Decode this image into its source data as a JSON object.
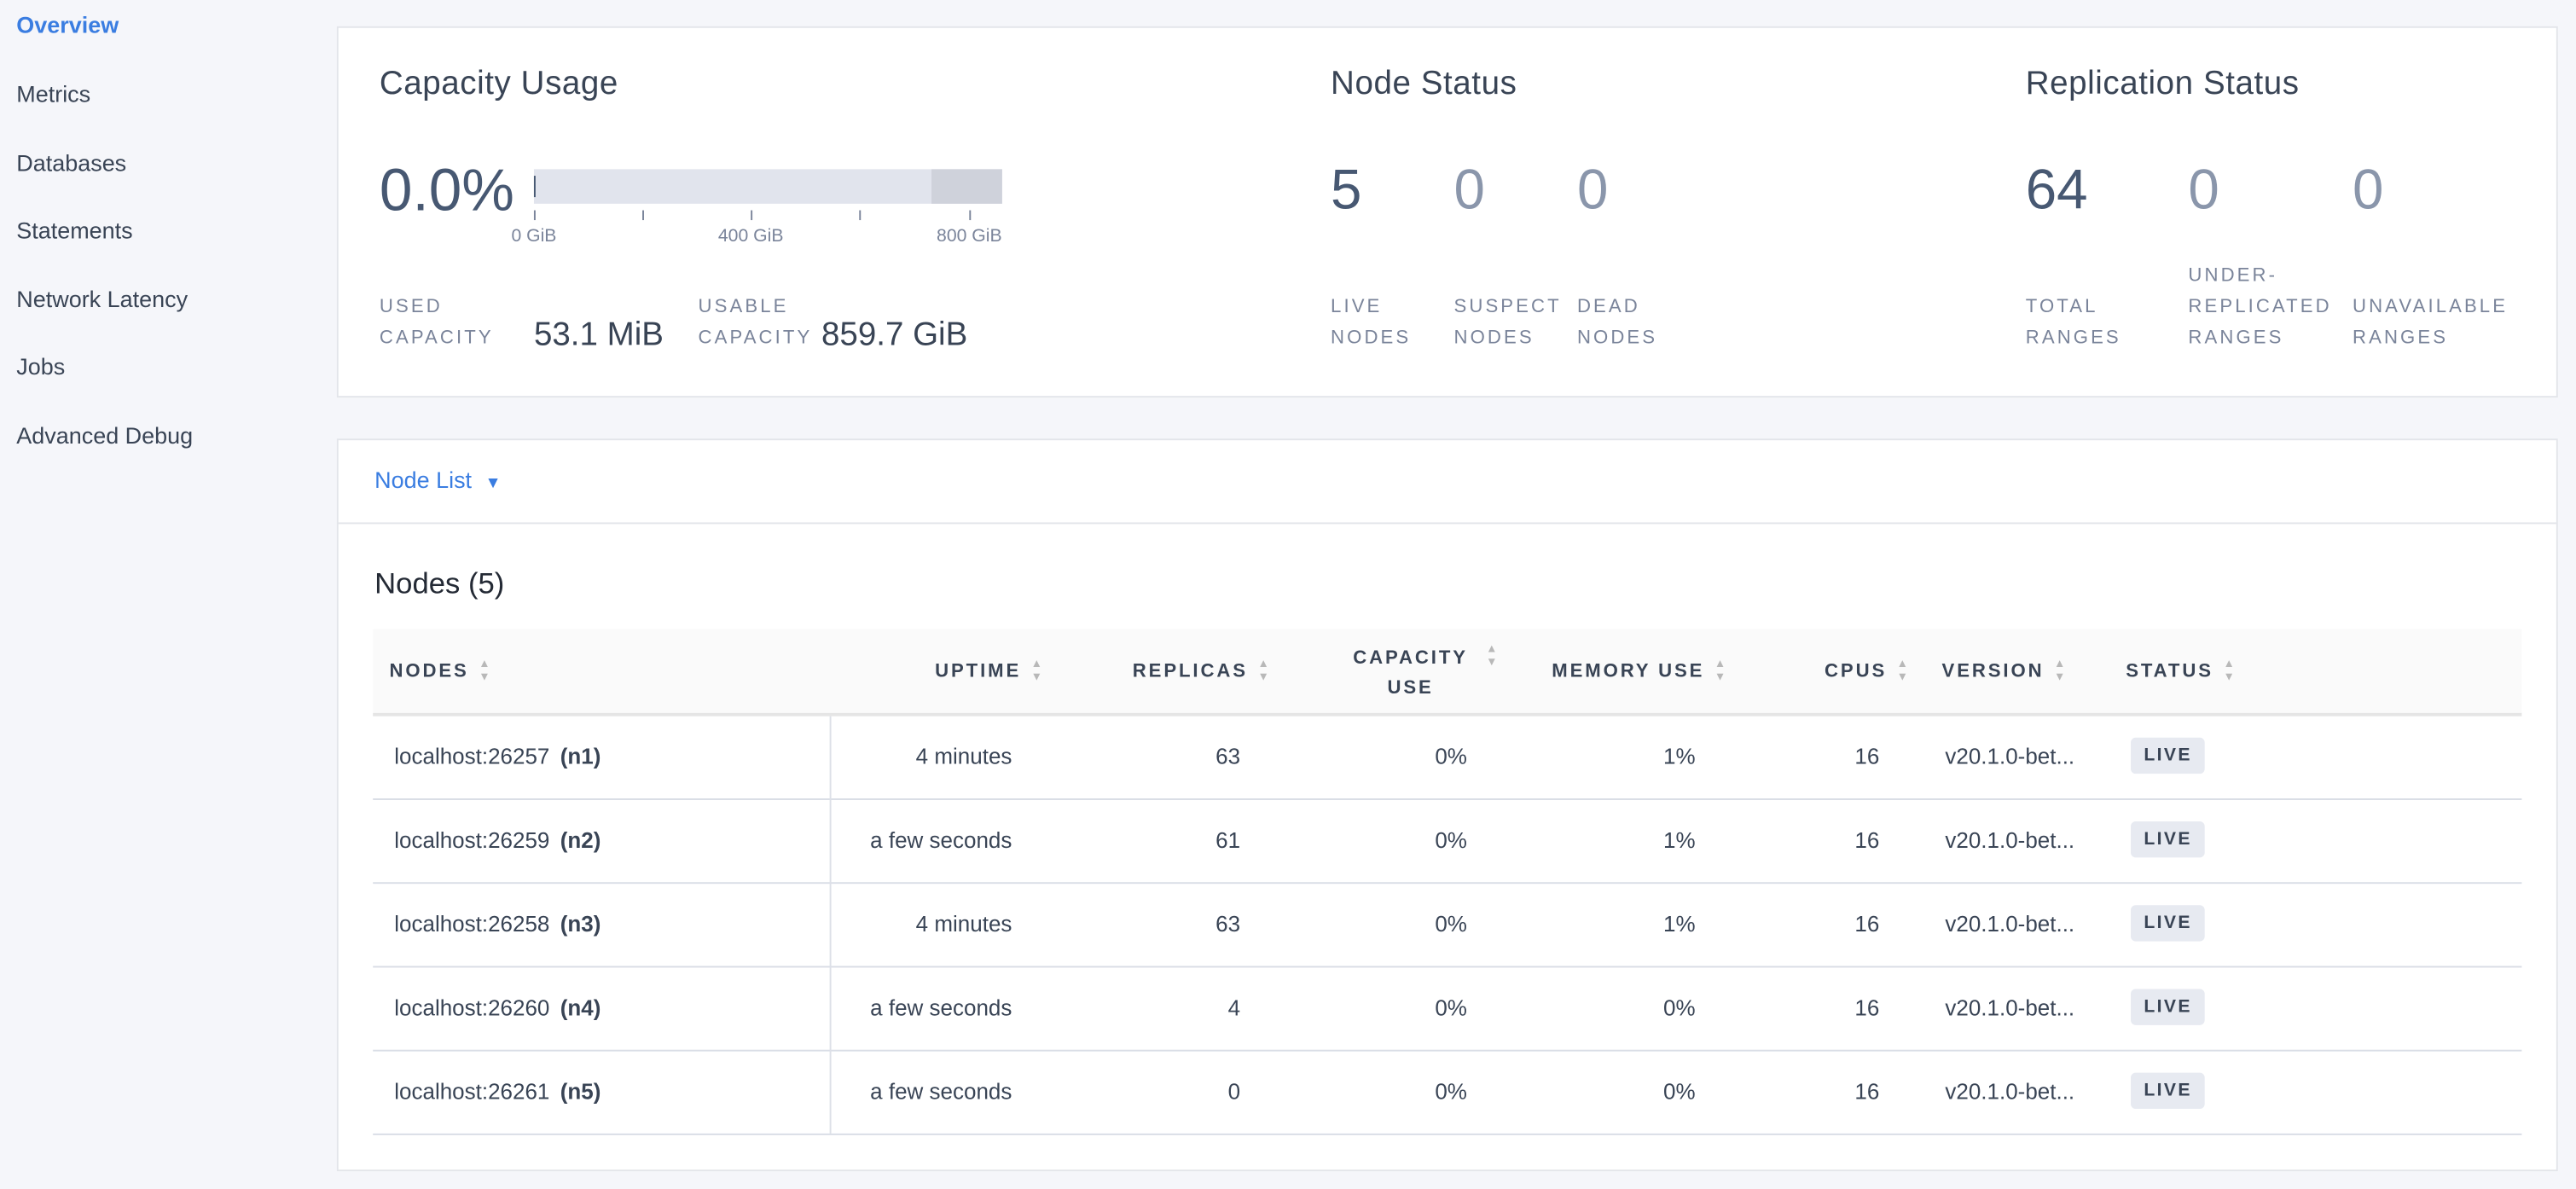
{
  "sidebar": {
    "items": [
      {
        "label": "Overview",
        "active": true
      },
      {
        "label": "Metrics"
      },
      {
        "label": "Databases"
      },
      {
        "label": "Statements"
      },
      {
        "label": "Network Latency"
      },
      {
        "label": "Jobs"
      },
      {
        "label": "Advanced Debug"
      }
    ]
  },
  "capacity": {
    "title": "Capacity Usage",
    "percent": "0.0%",
    "used_fraction": 0.0,
    "bar_max_fraction_label": "usable",
    "ticks": [
      "0 GiB",
      "400 GiB",
      "800 GiB"
    ],
    "used_label_1": "USED",
    "used_label_2": "CAPACITY",
    "used_value": "53.1 MiB",
    "usable_label_1": "USABLE",
    "usable_label_2": "CAPACITY",
    "usable_value": "859.7 GiB"
  },
  "node_status": {
    "title": "Node Status",
    "stats": [
      {
        "value": "5",
        "l1": "LIVE",
        "l2": "NODES"
      },
      {
        "value": "0",
        "l1": "SUSPECT",
        "l2": "NODES"
      },
      {
        "value": "0",
        "l1": "DEAD",
        "l2": "NODES"
      }
    ]
  },
  "replication": {
    "title": "Replication Status",
    "stats": [
      {
        "value": "64",
        "l1": "TOTAL",
        "l2": "RANGES"
      },
      {
        "value": "0",
        "l0": "UNDER-",
        "l1": "REPLICATED",
        "l2": "RANGES"
      },
      {
        "value": "0",
        "l1": "UNAVAILABLE",
        "l2": "RANGES"
      }
    ]
  },
  "node_list": {
    "dropdown_label": "Node List",
    "dropdown_icon": "caret-down-icon",
    "title": "Nodes (5)",
    "columns": [
      "NODES",
      "UPTIME",
      "REPLICAS",
      "CAPACITY USE",
      "MEMORY USE",
      "CPUS",
      "VERSION",
      "STATUS"
    ],
    "rows": [
      {
        "host": "localhost:26257",
        "id": "(n1)",
        "uptime": "4 minutes",
        "replicas": "63",
        "capacity": "0%",
        "memory": "1%",
        "cpus": "16",
        "version": "v20.1.0-bet...",
        "status": "LIVE"
      },
      {
        "host": "localhost:26259",
        "id": "(n2)",
        "uptime": "a few seconds",
        "replicas": "61",
        "capacity": "0%",
        "memory": "1%",
        "cpus": "16",
        "version": "v20.1.0-bet...",
        "status": "LIVE"
      },
      {
        "host": "localhost:26258",
        "id": "(n3)",
        "uptime": "4 minutes",
        "replicas": "63",
        "capacity": "0%",
        "memory": "1%",
        "cpus": "16",
        "version": "v20.1.0-bet...",
        "status": "LIVE"
      },
      {
        "host": "localhost:26260",
        "id": "(n4)",
        "uptime": "a few seconds",
        "replicas": "4",
        "capacity": "0%",
        "memory": "0%",
        "cpus": "16",
        "version": "v20.1.0-bet...",
        "status": "LIVE"
      },
      {
        "host": "localhost:26261",
        "id": "(n5)",
        "uptime": "a few seconds",
        "replicas": "0",
        "capacity": "0%",
        "memory": "0%",
        "cpus": "16",
        "version": "v20.1.0-bet...",
        "status": "LIVE"
      }
    ]
  },
  "colors": {
    "accent": "#3a7de1",
    "text": "#394455",
    "muted": "#7a849a",
    "bar": "#e1e4ed",
    "bar_reserved": "#cfd2db"
  }
}
